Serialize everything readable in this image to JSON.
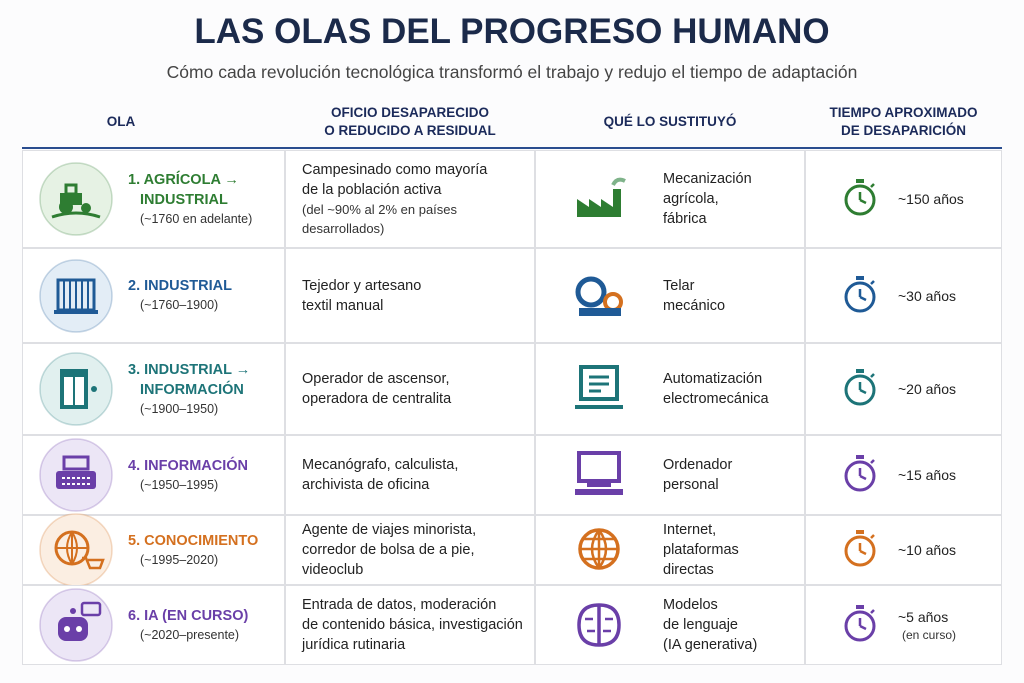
{
  "header": {
    "title": "LAS OLAS DEL PROGRESO HUMANO",
    "subtitle": "Cómo cada revolución tecnológica transformó el trabajo y redujo el tiempo de adaptación"
  },
  "table": {
    "columns": [
      [
        "OLA"
      ],
      [
        "OFICIO DESAPARECIDO",
        "O REDUCIDO A RESIDUAL"
      ],
      [
        "QUÉ LO SUSTITUYÓ"
      ],
      [
        "TIEMPO APROXIMADO",
        "DE DESAPARICIÓN"
      ]
    ],
    "rows": [
      {
        "ola": [
          "1. AGRÍCOLA →",
          "INDUSTRIAL"
        ],
        "period": "(~1760 en adelante)",
        "oficio": [
          "Campesinado como mayoría",
          "de la población activa"
        ],
        "oficio_note": [
          "(del ~90% al 2% en países",
          "desarrollados)"
        ],
        "sustituto": [
          "Mecanización",
          "agrícola,",
          "fábrica"
        ],
        "tiempo": "~150 años",
        "color": "#2e7d32",
        "tint": "#e6f2e4"
      },
      {
        "ola": [
          "2. INDUSTRIAL"
        ],
        "period": "(~1760–1900)",
        "oficio": [
          "Tejedor y artesano",
          "textil manual"
        ],
        "sustituto": [
          "Telar",
          "mecánico"
        ],
        "tiempo": "~30 años",
        "color": "#1f5a96",
        "tint": "#e3edf6"
      },
      {
        "ola": [
          "3. INDUSTRIAL →",
          "INFORMACIÓN"
        ],
        "period": "(~1900–1950)",
        "oficio": [
          "Operador de ascensor,",
          "operadora de centralita"
        ],
        "sustituto": [
          "Automatización",
          "electromecánica"
        ],
        "tiempo": "~20 años",
        "color": "#1d7478",
        "tint": "#e1f0ef"
      },
      {
        "ola": [
          "4. INFORMACIÓN"
        ],
        "period": "(~1950–1995)",
        "oficio": [
          "Mecanógrafo, calculista,",
          "archivista de oficina"
        ],
        "sustituto": [
          "Ordenador",
          "personal"
        ],
        "tiempo": "~15 años",
        "color": "#6a3fa8",
        "tint": "#ece6f6"
      },
      {
        "ola": [
          "5. CONOCIMIENTO"
        ],
        "period": "(~1995–2020)",
        "oficio": [
          "Agente de viajes minorista,",
          "corredor de bolsa de a pie,",
          "videoclub"
        ],
        "sustituto": [
          "Internet,",
          "plataformas",
          "directas"
        ],
        "tiempo": "~10 años",
        "color": "#d4701f",
        "tint": "#fbeee2"
      },
      {
        "ola": [
          "6. IA (EN CURSO)"
        ],
        "period": "(~2020–presente)",
        "oficio": [
          "Entrada de datos, moderación",
          "de contenido básica, investigación",
          "jurídica rutinaria"
        ],
        "sustituto": [
          "Modelos",
          "de lenguaje",
          "(IA generativa)"
        ],
        "tiempo": "~5 años",
        "tiempo_note": "(en curso)",
        "color": "#6a3fa8",
        "tint": "#ece6f6"
      }
    ]
  }
}
